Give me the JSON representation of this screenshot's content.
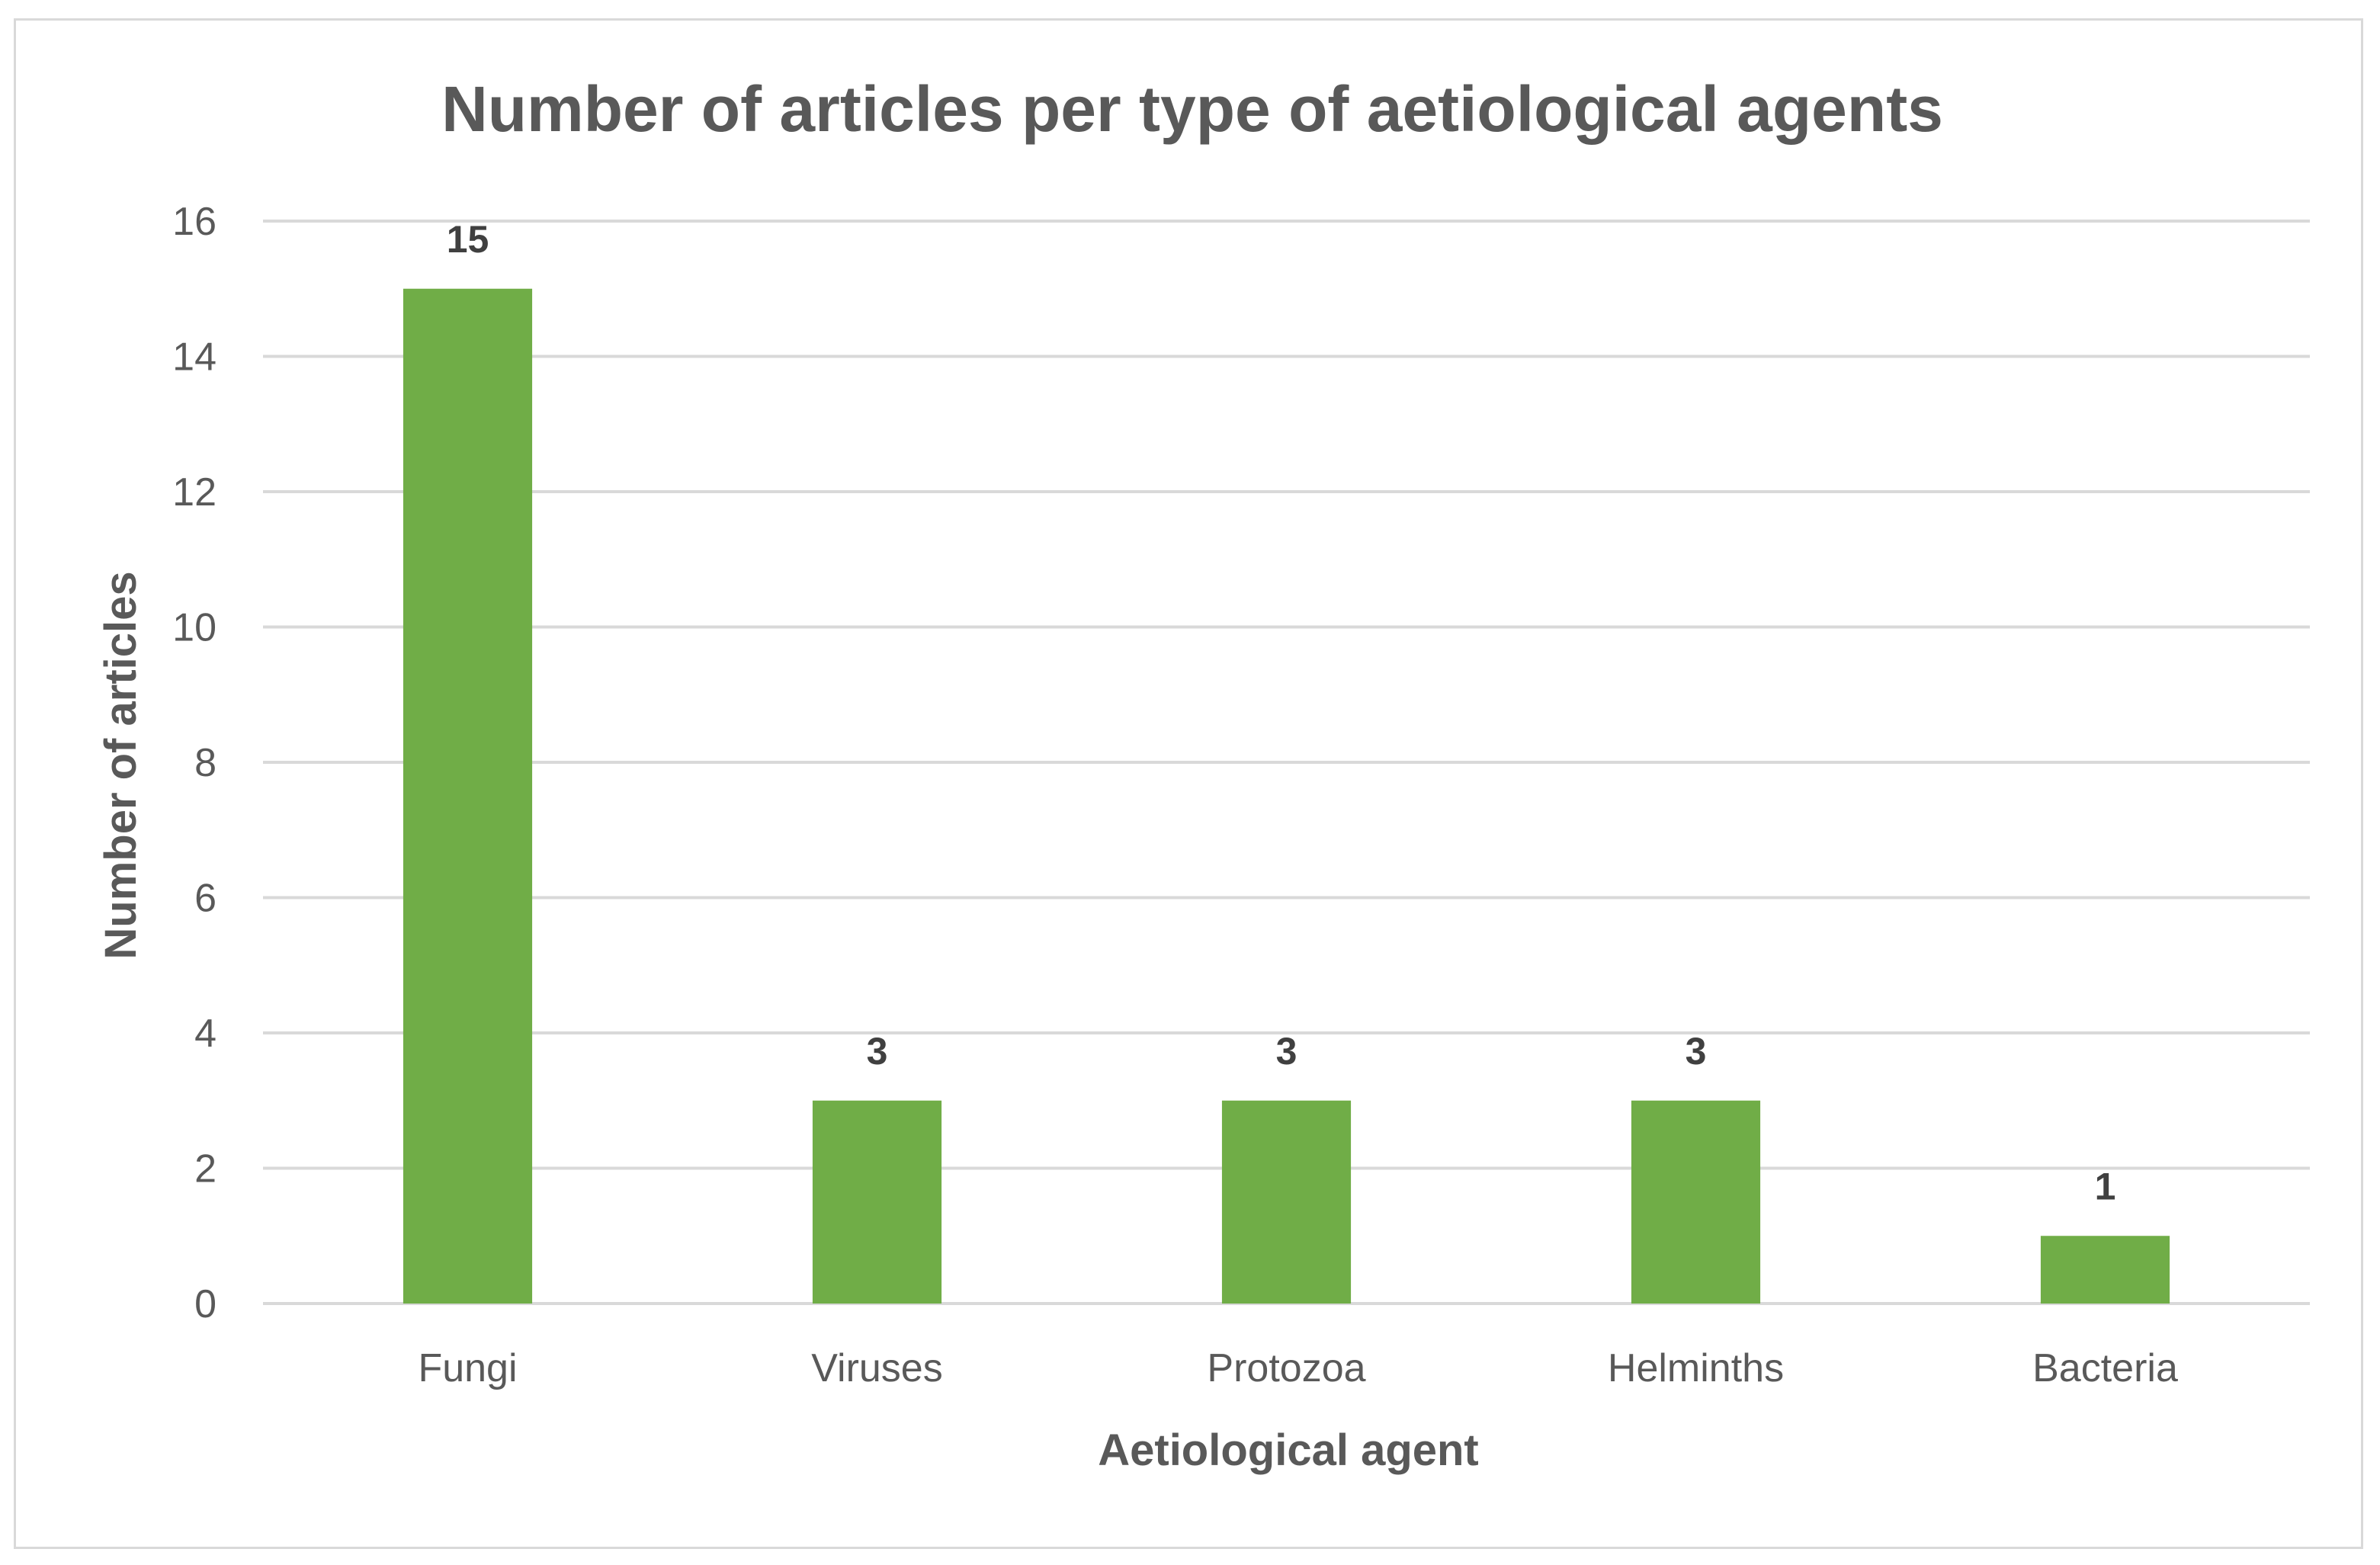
{
  "chart_data": {
    "type": "bar",
    "title": "Number of articles per type of aetiological agents",
    "xlabel": "Aetiological agent",
    "ylabel": "Number of articles",
    "categories": [
      "Fungi",
      "Viruses",
      "Protozoa",
      "Helminths",
      "Bacteria"
    ],
    "values": [
      15,
      3,
      3,
      3,
      1
    ],
    "data_labels": [
      "15",
      "3",
      "3",
      "3",
      "1"
    ],
    "ylim": [
      0,
      16
    ],
    "yticks": [
      0,
      2,
      4,
      6,
      8,
      10,
      12,
      14,
      16
    ],
    "grid": true,
    "legend": "none",
    "bar_color": "#70ad47"
  }
}
